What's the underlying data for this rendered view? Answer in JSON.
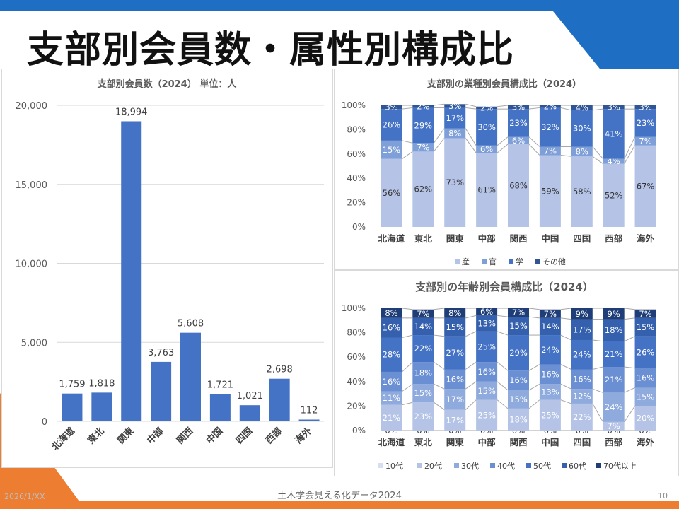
{
  "slide": {
    "title": "支部別会員数・属性別構成比",
    "footer_date": "2026/1/XX",
    "footer_center": "土木学会見える化データ2024",
    "page_number": "10"
  },
  "colors": {
    "bar": "#4472c4",
    "accent_blue": "#1e6fc4",
    "accent_orange": "#ed7d31",
    "grid": "#d9d9d9",
    "axis_text": "#595959"
  },
  "chart_data": [
    {
      "id": "members",
      "type": "bar",
      "title": "支部別会員数（2024） 単位：人",
      "categories": [
        "北海道",
        "東北",
        "関東",
        "中部",
        "関西",
        "中国",
        "四国",
        "西部",
        "海外"
      ],
      "values": [
        1759,
        1818,
        18994,
        3763,
        5608,
        1721,
        1021,
        2698,
        112
      ],
      "value_labels": [
        "1,759",
        "1,818",
        "18,994",
        "3,763",
        "5,608",
        "1,721",
        "1,021",
        "2,698",
        "112"
      ],
      "yticks": [
        "0",
        "5,000",
        "10,000",
        "15,000",
        "20,000"
      ],
      "ylim": [
        0,
        20000
      ],
      "legend": "none"
    },
    {
      "id": "industry",
      "type": "bar",
      "stacked": "percent",
      "title": "支部別の業種別会員構成比（2024）",
      "categories": [
        "北海道",
        "東北",
        "関東",
        "中部",
        "関西",
        "中国",
        "四国",
        "西部",
        "海外"
      ],
      "yticks": [
        "0%",
        "20%",
        "40%",
        "60%",
        "80%",
        "100%"
      ],
      "series": [
        {
          "name": "産",
          "color": "#b4c3e6",
          "values": [
            56,
            62,
            73,
            61,
            68,
            59,
            58,
            52,
            67
          ],
          "labels": [
            "56%",
            "62%",
            "73%",
            "61%",
            "68%",
            "59%",
            "58%",
            "52%",
            "67%"
          ]
        },
        {
          "name": "官",
          "color": "#7f9fd8",
          "values": [
            15,
            7,
            8,
            6,
            6,
            7,
            8,
            4,
            7
          ],
          "labels": [
            "15%",
            "7%",
            "8%",
            "6%",
            "6%",
            "7%",
            "8%",
            "4%",
            "7%"
          ]
        },
        {
          "name": "学",
          "color": "#4472c4",
          "values": [
            26,
            29,
            17,
            30,
            23,
            32,
            30,
            41,
            23
          ],
          "labels": [
            "26%",
            "29%",
            "17%",
            "30%",
            "23%",
            "32%",
            "30%",
            "41%",
            "23%"
          ]
        },
        {
          "name": "その他",
          "color": "#2f5597",
          "values": [
            3,
            2,
            3,
            2,
            3,
            2,
            4,
            3,
            3
          ],
          "labels": [
            "3%",
            "2%",
            "3%",
            "2%",
            "3%",
            "2%",
            "4%",
            "3%",
            "3%"
          ]
        }
      ],
      "legend": "bottom"
    },
    {
      "id": "age",
      "type": "bar",
      "stacked": "percent",
      "title": "支部別の年齢別会員構成比（2024）",
      "categories": [
        "北海道",
        "東北",
        "関東",
        "中部",
        "関西",
        "中国",
        "四国",
        "西部",
        "海外"
      ],
      "yticks": [
        "0%",
        "20%",
        "40%",
        "60%",
        "80%",
        "100%"
      ],
      "series": [
        {
          "name": "10代",
          "color": "#d6def2",
          "values": [
            0,
            0,
            0,
            0,
            0,
            0,
            0,
            0,
            0
          ],
          "labels": [
            "0%",
            "0%",
            "0%",
            "0%",
            "0%",
            "0%",
            "0%",
            "0%",
            "0%"
          ]
        },
        {
          "name": "20代",
          "color": "#b4c3e6",
          "values": [
            21,
            23,
            17,
            25,
            18,
            25,
            22,
            7,
            20
          ],
          "labels": [
            "21%",
            "23%",
            "17%",
            "25%",
            "18%",
            "25%",
            "22%",
            "7%",
            "20%"
          ]
        },
        {
          "name": "30代",
          "color": "#8faadc",
          "values": [
            11,
            15,
            17,
            15,
            15,
            13,
            12,
            24,
            15
          ],
          "labels": [
            "11%",
            "15%",
            "17%",
            "15%",
            "15%",
            "13%",
            "12%",
            "24%",
            "15%"
          ]
        },
        {
          "name": "40代",
          "color": "#6b8fd3",
          "values": [
            16,
            18,
            16,
            16,
            16,
            16,
            16,
            21,
            16
          ],
          "labels": [
            "16%",
            "18%",
            "16%",
            "16%",
            "16%",
            "16%",
            "16%",
            "21%",
            "16%"
          ]
        },
        {
          "name": "50代",
          "color": "#4472c4",
          "values": [
            28,
            22,
            27,
            25,
            29,
            24,
            24,
            21,
            26
          ],
          "labels": [
            "28%",
            "22%",
            "27%",
            "25%",
            "29%",
            "24%",
            "24%",
            "21%",
            "26%"
          ]
        },
        {
          "name": "60代",
          "color": "#3460ad",
          "values": [
            16,
            14,
            15,
            13,
            15,
            14,
            17,
            18,
            15
          ],
          "labels": [
            "16%",
            "14%",
            "15%",
            "13%",
            "15%",
            "14%",
            "17%",
            "18%",
            "15%"
          ]
        },
        {
          "name": "70代以上",
          "color": "#1f3e78",
          "values": [
            8,
            7,
            8,
            6,
            7,
            7,
            9,
            9,
            7
          ],
          "labels": [
            "8%",
            "7%",
            "8%",
            "6%",
            "7%",
            "7%",
            "9%",
            "9%",
            "7%"
          ]
        }
      ],
      "legend": "bottom"
    }
  ]
}
